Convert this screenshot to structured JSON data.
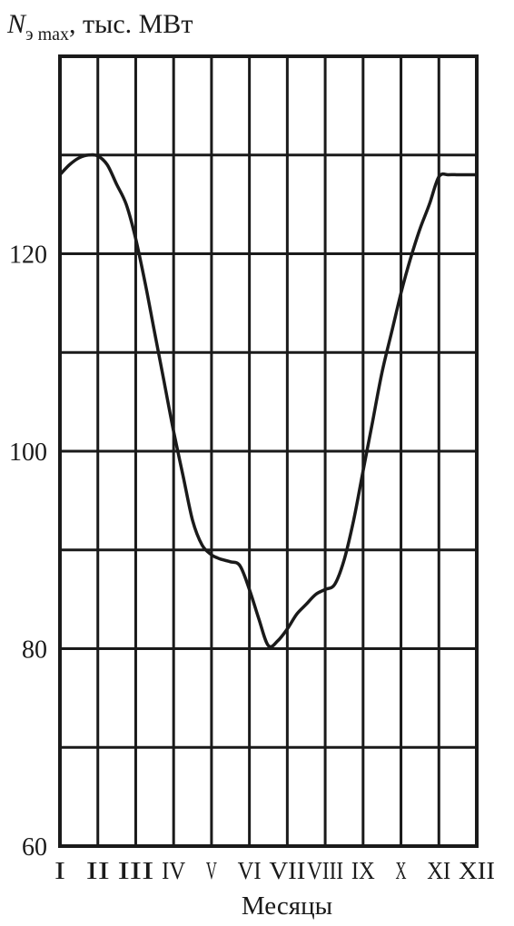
{
  "chart_data": {
    "type": "line",
    "ylabel_symbol": "N",
    "ylabel_subscript": "э max",
    "ylabel_unit": ", тыс. МВт",
    "xlabel": "Месяцы",
    "categories": [
      "I",
      "II",
      "III",
      "IV",
      "V",
      "VI",
      "VII",
      "VIII",
      "IX",
      "X",
      "XI",
      "XII"
    ],
    "yticks": [
      60,
      80,
      100,
      120
    ],
    "ylim": [
      60,
      140
    ],
    "grid": true,
    "series": [
      {
        "x": [
          0.0,
          0.25,
          0.5,
          0.75,
          1.0,
          1.25,
          1.5,
          1.75,
          2.0,
          2.25,
          2.5,
          2.75,
          3.0,
          3.25,
          3.5,
          3.75,
          4.0,
          4.15,
          4.3,
          4.5,
          4.75,
          5.0,
          5.25,
          5.5,
          5.75,
          6.0,
          6.25,
          6.5,
          6.75,
          7.0,
          7.25,
          7.5,
          7.75,
          8.0,
          8.25,
          8.5,
          8.75,
          9.0,
          9.25,
          9.5,
          9.75,
          10.0,
          10.25,
          10.5,
          10.75,
          11.0
        ],
        "values": [
          128,
          129,
          129.7,
          130,
          129.9,
          129,
          127,
          125,
          121.5,
          117,
          112,
          107,
          102,
          97.5,
          93,
          90.5,
          89.5,
          89.2,
          89,
          88.8,
          88.4,
          86,
          83,
          80.3,
          80.8,
          82,
          83.5,
          84.5,
          85.5,
          86,
          86.5,
          89,
          93,
          98,
          103,
          108,
          112,
          116,
          119.5,
          122.5,
          125,
          127.8,
          128,
          128,
          128,
          128
        ]
      }
    ]
  }
}
